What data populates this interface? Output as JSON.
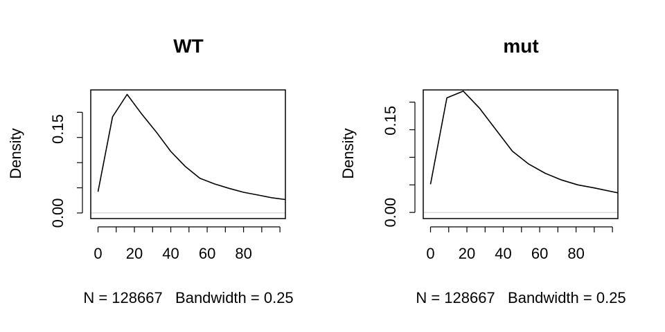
{
  "chart_data": [
    {
      "type": "line",
      "title": "WT",
      "xlabel": "N = 128667   Bandwidth = 0.25",
      "ylabel": "Density",
      "xlim": [
        -4,
        103
      ],
      "ylim": [
        -0.01,
        0.22
      ],
      "xticks": [
        "0",
        "20",
        "40",
        "60",
        "80"
      ],
      "yticks": [
        "0.00",
        "0.15"
      ],
      "ytick_values": [
        0.0,
        0.045,
        0.09,
        0.135,
        0.18
      ],
      "ytick_labeled": [
        0.0,
        0.15
      ],
      "x": [
        0,
        8,
        16,
        24,
        32,
        40,
        48,
        56,
        64,
        72,
        80,
        88,
        96,
        103
      ],
      "y": [
        0.038,
        0.172,
        0.212,
        0.177,
        0.145,
        0.11,
        0.083,
        0.062,
        0.052,
        0.044,
        0.037,
        0.032,
        0.027,
        0.024
      ],
      "baseline": 0
    },
    {
      "type": "line",
      "title": "mut",
      "xlabel": "N = 128667   Bandwidth = 0.25",
      "ylabel": "Density",
      "xlim": [
        -4,
        103
      ],
      "ylim": [
        -0.01,
        0.2
      ],
      "xticks": [
        "0",
        "20",
        "40",
        "60",
        "80"
      ],
      "yticks": [
        "0.00",
        "0.15"
      ],
      "ytick_values": [
        0.0,
        0.045,
        0.09,
        0.135,
        0.18
      ],
      "ytick_labeled": [
        0.0,
        0.15
      ],
      "x": [
        0,
        9,
        18,
        27,
        36,
        45,
        54,
        63,
        72,
        81,
        90,
        103
      ],
      "y": [
        0.046,
        0.187,
        0.198,
        0.17,
        0.135,
        0.1,
        0.079,
        0.064,
        0.053,
        0.045,
        0.04,
        0.032
      ],
      "baseline": 0
    }
  ]
}
